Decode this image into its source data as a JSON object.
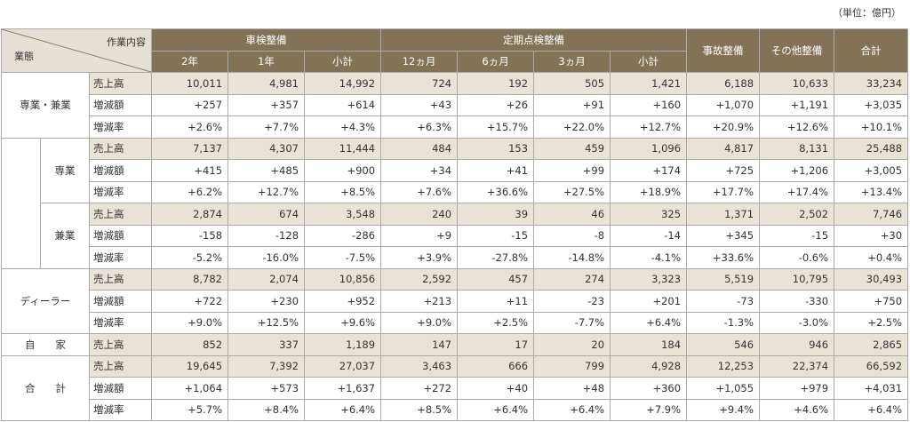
{
  "unit_note": "（単位：億円）",
  "header": {
    "corner_top": "作業内容",
    "corner_bottom": "業態",
    "groups": [
      {
        "label": "車検整備",
        "subs": [
          "2年",
          "1年",
          "小計"
        ]
      },
      {
        "label": "定期点検整備",
        "subs": [
          "12ヵ月",
          "6ヵ月",
          "3ヵ月",
          "小計"
        ]
      }
    ],
    "singles": [
      "事故整備",
      "その他整備",
      "合計"
    ]
  },
  "sections": [
    {
      "category": "専業・兼業",
      "indent": false,
      "rows": [
        {
          "metric": "売上高",
          "values": [
            "10,011",
            "4,981",
            "14,992",
            "724",
            "192",
            "505",
            "1,421",
            "6,188",
            "10,633",
            "33,234"
          ]
        },
        {
          "metric": "増減額",
          "values": [
            "+257",
            "+357",
            "+614",
            "+43",
            "+26",
            "+91",
            "+160",
            "+1,070",
            "+1,191",
            "+3,035"
          ]
        },
        {
          "metric": "増減率",
          "values": [
            "+2.6%",
            "+7.7%",
            "+4.3%",
            "+6.3%",
            "+15.7%",
            "+22.0%",
            "+12.7%",
            "+20.9%",
            "+12.6%",
            "+10.1%"
          ]
        }
      ]
    },
    {
      "category": "専業",
      "indent": true,
      "rows": [
        {
          "metric": "売上高",
          "values": [
            "7,137",
            "4,307",
            "11,444",
            "484",
            "153",
            "459",
            "1,096",
            "4,817",
            "8,131",
            "25,488"
          ]
        },
        {
          "metric": "増減額",
          "values": [
            "+415",
            "+485",
            "+900",
            "+34",
            "+41",
            "+99",
            "+174",
            "+725",
            "+1,206",
            "+3,005"
          ]
        },
        {
          "metric": "増減率",
          "values": [
            "+6.2%",
            "+12.7%",
            "+8.5%",
            "+7.6%",
            "+36.6%",
            "+27.5%",
            "+18.9%",
            "+17.7%",
            "+17.4%",
            "+13.4%"
          ]
        }
      ]
    },
    {
      "category": "兼業",
      "indent": true,
      "rows": [
        {
          "metric": "売上高",
          "values": [
            "2,874",
            "674",
            "3,548",
            "240",
            "39",
            "46",
            "325",
            "1,371",
            "2,502",
            "7,746"
          ]
        },
        {
          "metric": "増減額",
          "values": [
            "-158",
            "-128",
            "-286",
            "+9",
            "-15",
            "-8",
            "-14",
            "+345",
            "-15",
            "+30"
          ]
        },
        {
          "metric": "増減率",
          "values": [
            "-5.2%",
            "-16.0%",
            "-7.5%",
            "+3.9%",
            "-27.8%",
            "-14.8%",
            "-4.1%",
            "+33.6%",
            "-0.6%",
            "+0.4%"
          ]
        }
      ]
    },
    {
      "category": "ディーラー",
      "indent": false,
      "rows": [
        {
          "metric": "売上高",
          "values": [
            "8,782",
            "2,074",
            "10,856",
            "2,592",
            "457",
            "274",
            "3,323",
            "5,519",
            "10,795",
            "30,493"
          ]
        },
        {
          "metric": "増減額",
          "values": [
            "+722",
            "+230",
            "+952",
            "+213",
            "+11",
            "-23",
            "+201",
            "-73",
            "-330",
            "+750"
          ]
        },
        {
          "metric": "増減率",
          "values": [
            "+9.0%",
            "+12.5%",
            "+9.6%",
            "+9.0%",
            "+2.5%",
            "-7.7%",
            "+6.4%",
            "-1.3%",
            "-3.0%",
            "+2.5%"
          ]
        }
      ]
    },
    {
      "category": "自　　家",
      "indent": false,
      "rows": [
        {
          "metric": "売上高",
          "values": [
            "852",
            "337",
            "1,189",
            "147",
            "17",
            "20",
            "184",
            "546",
            "946",
            "2,865"
          ]
        }
      ]
    },
    {
      "category": "合　　計",
      "indent": false,
      "rows": [
        {
          "metric": "売上高",
          "values": [
            "19,645",
            "7,392",
            "27,037",
            "3,463",
            "666",
            "799",
            "4,928",
            "12,253",
            "22,374",
            "66,592"
          ]
        },
        {
          "metric": "増減額",
          "values": [
            "+1,064",
            "+573",
            "+1,637",
            "+272",
            "+40",
            "+48",
            "+360",
            "+1,055",
            "+979",
            "+4,031"
          ]
        },
        {
          "metric": "増減率",
          "values": [
            "+5.7%",
            "+8.4%",
            "+6.4%",
            "+8.5%",
            "+6.4%",
            "+6.4%",
            "+7.9%",
            "+9.4%",
            "+4.6%",
            "+6.4%"
          ]
        }
      ]
    }
  ]
}
